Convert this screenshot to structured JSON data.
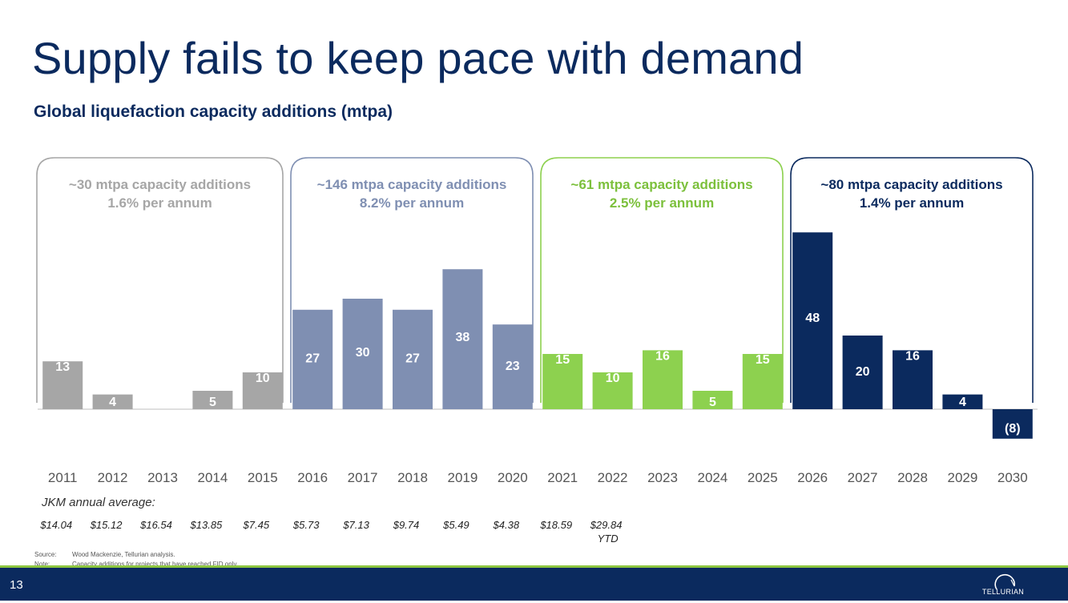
{
  "slide": {
    "title": "Supply fails to keep pace with demand",
    "subtitle": "Global liquefaction capacity additions (mtpa)",
    "page_number": "13",
    "logo_text": "TELLURIAN"
  },
  "footnotes": {
    "source_label": "Source:",
    "source_text": "Wood Mackenzie, Tellurian analysis.",
    "note_label": "Note:",
    "note_text": "Capacity additions for projects that have reached FID only."
  },
  "chart_data": {
    "type": "bar",
    "title": "Global liquefaction capacity additions (mtpa)",
    "categories": [
      "2011",
      "2012",
      "2013",
      "2014",
      "2015",
      "2016",
      "2017",
      "2018",
      "2019",
      "2020",
      "2021",
      "2022",
      "2023",
      "2024",
      "2025",
      "2026",
      "2027",
      "2028",
      "2029",
      "2030"
    ],
    "values": [
      13,
      4,
      0,
      5,
      10,
      27,
      30,
      27,
      38,
      23,
      15,
      10,
      16,
      5,
      15,
      48,
      20,
      16,
      4,
      -8
    ],
    "value_labels": [
      "13",
      "4",
      "",
      "5",
      "10",
      "27",
      "30",
      "27",
      "38",
      "23",
      "15",
      "10",
      "16",
      "5",
      "15",
      "48",
      "20",
      "16",
      "4",
      "(8)"
    ],
    "ylim": [
      -10,
      52
    ],
    "groups": [
      {
        "line1": "~30 mtpa capacity additions",
        "line2": "1.6% per annum",
        "start": 0,
        "end": 4,
        "color": "#a6a6a6",
        "text_color": "#a6a6a6"
      },
      {
        "line1": "~146 mtpa capacity additions",
        "line2": "8.2% per annum",
        "start": 5,
        "end": 9,
        "color": "#7f8fb2",
        "text_color": "#7f8fb2"
      },
      {
        "line1": "~61 mtpa capacity additions",
        "line2": "2.5% per annum",
        "start": 10,
        "end": 14,
        "color": "#8dd14f",
        "text_color": "#7cc03c"
      },
      {
        "line1": "~80 mtpa capacity additions",
        "line2": "1.4% per annum",
        "start": 15,
        "end": 19,
        "color": "#0b2a5e",
        "text_color": "#0b2a5e"
      }
    ],
    "jkm_label": "JKM annual average:",
    "jkm_values": [
      {
        "price": "$14.04",
        "note": ""
      },
      {
        "price": "$15.12",
        "note": ""
      },
      {
        "price": "$16.54",
        "note": ""
      },
      {
        "price": "$13.85",
        "note": ""
      },
      {
        "price": "$7.45",
        "note": ""
      },
      {
        "price": "$5.73",
        "note": ""
      },
      {
        "price": "$7.13",
        "note": ""
      },
      {
        "price": "$9.74",
        "note": ""
      },
      {
        "price": "$5.49",
        "note": ""
      },
      {
        "price": "$4.38",
        "note": ""
      },
      {
        "price": "$18.59",
        "note": ""
      },
      {
        "price": "$29.84",
        "note": "YTD"
      }
    ]
  }
}
